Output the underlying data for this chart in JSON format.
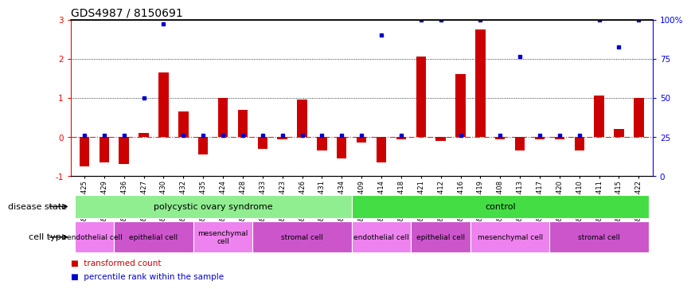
{
  "title": "GDS4987 / 8150691",
  "samples": [
    "GSM1174425",
    "GSM1174429",
    "GSM1174436",
    "GSM1174427",
    "GSM1174430",
    "GSM1174432",
    "GSM1174435",
    "GSM1174424",
    "GSM1174428",
    "GSM1174433",
    "GSM1174423",
    "GSM1174426",
    "GSM1174431",
    "GSM1174434",
    "GSM1174409",
    "GSM1174414",
    "GSM1174418",
    "GSM1174421",
    "GSM1174412",
    "GSM1174416",
    "GSM1174419",
    "GSM1174408",
    "GSM1174413",
    "GSM1174417",
    "GSM1174420",
    "GSM1174410",
    "GSM1174411",
    "GSM1174415",
    "GSM1174422"
  ],
  "red_values": [
    -0.75,
    -0.65,
    -0.7,
    0.1,
    1.65,
    0.65,
    -0.45,
    1.0,
    0.7,
    -0.3,
    -0.05,
    0.95,
    -0.35,
    -0.55,
    -0.15,
    -0.65,
    -0.05,
    2.05,
    -0.1,
    1.6,
    2.75,
    -0.05,
    -0.35,
    -0.05,
    -0.05,
    -0.35,
    1.05,
    0.2,
    1.0
  ],
  "blue_values": [
    0.05,
    0.05,
    0.05,
    1.0,
    2.9,
    0.05,
    0.05,
    0.05,
    0.05,
    0.05,
    0.05,
    0.05,
    0.05,
    0.05,
    0.05,
    2.6,
    0.05,
    3.0,
    3.0,
    0.05,
    3.0,
    0.05,
    2.05,
    0.05,
    0.05,
    0.05,
    3.0,
    2.3,
    3.0
  ],
  "disease_state_groups": [
    {
      "label": "polycystic ovary syndrome",
      "start": 0,
      "end": 13,
      "color": "#90EE90"
    },
    {
      "label": "control",
      "start": 14,
      "end": 28,
      "color": "#44DD44"
    }
  ],
  "cell_type_groups": [
    {
      "label": "endothelial cell",
      "start": 0,
      "end": 1,
      "color": "#EE82EE"
    },
    {
      "label": "epithelial cell",
      "start": 2,
      "end": 5,
      "color": "#CC55CC"
    },
    {
      "label": "mesenchymal\ncell",
      "start": 6,
      "end": 8,
      "color": "#EE82EE"
    },
    {
      "label": "stromal cell",
      "start": 9,
      "end": 13,
      "color": "#CC55CC"
    },
    {
      "label": "endothelial cell",
      "start": 14,
      "end": 16,
      "color": "#EE82EE"
    },
    {
      "label": "epithelial cell",
      "start": 17,
      "end": 19,
      "color": "#CC55CC"
    },
    {
      "label": "mesenchymal cell",
      "start": 20,
      "end": 23,
      "color": "#EE82EE"
    },
    {
      "label": "stromal cell",
      "start": 24,
      "end": 28,
      "color": "#CC55CC"
    }
  ],
  "ylim": [
    -1,
    3
  ],
  "yticks": [
    -1,
    0,
    1,
    2,
    3
  ],
  "y2ticks": [
    0,
    25,
    50,
    75,
    100
  ],
  "bar_color_red": "#CC0000",
  "bar_color_blue": "#0000CC",
  "hline0_color": "#CC3333",
  "hline_color": "#000000",
  "title_fontsize": 10,
  "tick_fontsize": 6,
  "label_fontsize": 8,
  "row_label_fontsize": 8,
  "legend_fontsize": 7.5
}
